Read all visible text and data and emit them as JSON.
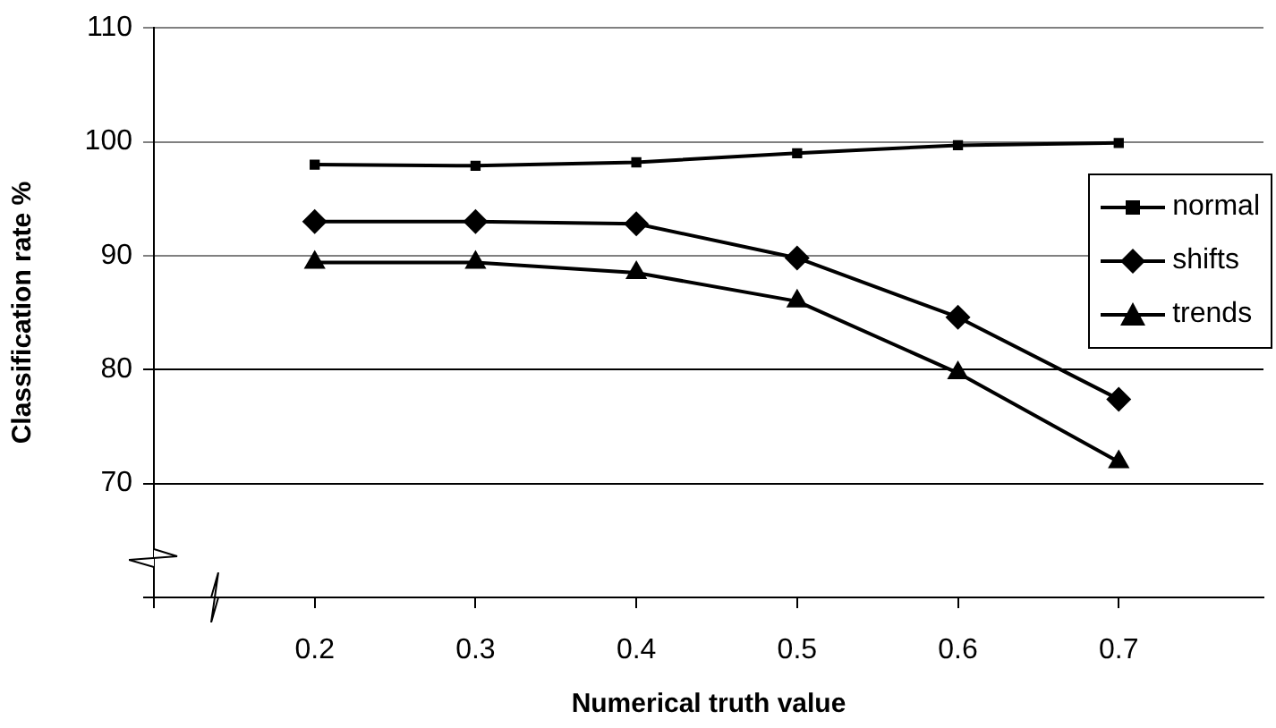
{
  "chart_data": {
    "type": "line",
    "xlabel": "Numerical truth value",
    "ylabel": "Classification rate %",
    "xlim": [
      0.1,
      0.79
    ],
    "xticks": [
      {
        "value": 0.1,
        "label": null
      },
      0.2,
      0.3,
      0.4,
      0.5,
      0.6,
      0.7
    ],
    "ylim": [
      60,
      110
    ],
    "yticks": [
      {
        "value": 60,
        "label": null
      },
      70,
      80,
      90,
      100,
      110
    ],
    "grid": "y",
    "legend": "right",
    "line_style": "solid",
    "x": [
      0.2,
      0.3,
      0.4,
      0.5,
      0.6,
      0.7
    ],
    "series": [
      {
        "name": "normal",
        "color": "#000000",
        "marker": "square",
        "values": [
          98.0,
          97.9,
          98.2,
          99.0,
          99.7,
          99.9
        ]
      },
      {
        "name": "shifts",
        "color": "#000000",
        "marker": "diamond",
        "values": [
          93.0,
          93.0,
          92.8,
          89.8,
          84.6,
          77.4
        ]
      },
      {
        "name": "trends",
        "color": "#000000",
        "marker": "triangle",
        "values": [
          89.4,
          89.4,
          88.5,
          86.0,
          79.7,
          71.9
        ]
      }
    ]
  }
}
